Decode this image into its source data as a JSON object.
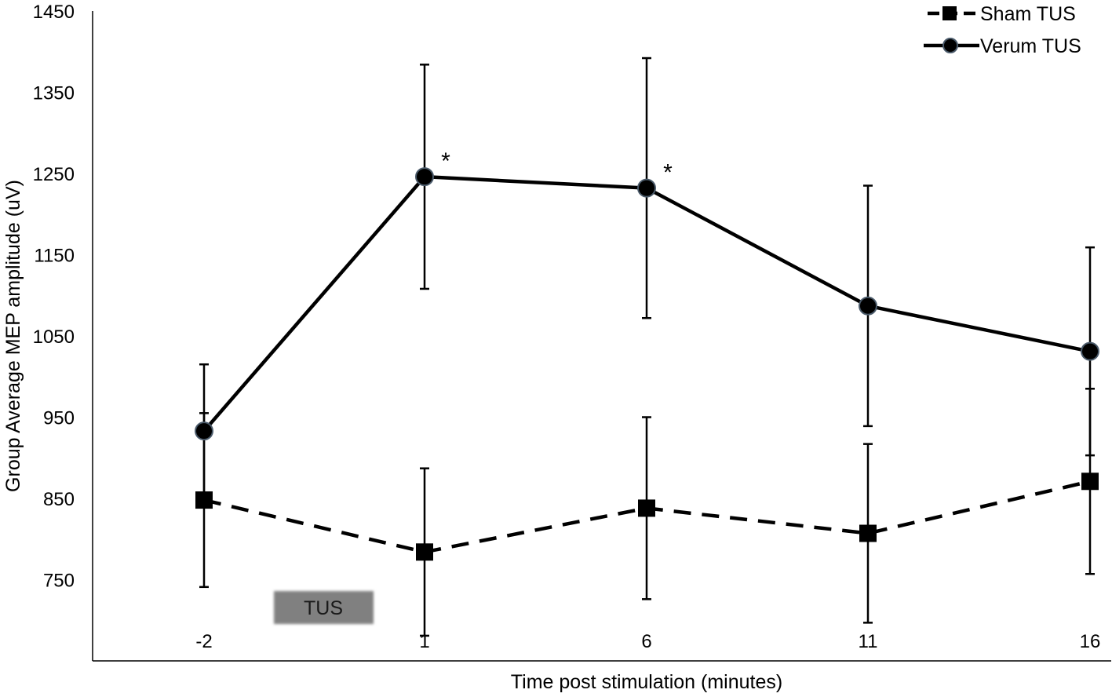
{
  "chart_data": {
    "type": "line",
    "categories": [
      "-2",
      "1",
      "6",
      "11",
      "16"
    ],
    "xlabel": "Time post stimulation (minutes)",
    "ylabel": "Group Average MEP amplitude  (uV)",
    "ylim": [
      650,
      1450
    ],
    "yticks": [
      750,
      850,
      950,
      1050,
      1150,
      1250,
      1350,
      1450
    ],
    "grid": false,
    "legend_position": "top-right",
    "series": [
      {
        "name": "Sham TUS",
        "marker": "square",
        "line_style": "dashed",
        "color": "#000000",
        "values": [
          848,
          784,
          838,
          807,
          871
        ],
        "error": [
          107,
          103,
          112,
          110,
          114
        ]
      },
      {
        "name": "Verum TUS",
        "marker": "circle",
        "line_style": "solid",
        "color": "#000000",
        "marker_edge_color": "#4a5a6a",
        "values": [
          933,
          1246,
          1232,
          1087,
          1031
        ],
        "error": [
          82,
          138,
          160,
          148,
          128
        ]
      }
    ],
    "annotations": [
      {
        "text": "*",
        "series": "Verum TUS",
        "category": "1"
      },
      {
        "text": "*",
        "series": "Verum TUS",
        "category": "6"
      }
    ],
    "tus_marker": {
      "label": "TUS",
      "color": "#808080"
    }
  }
}
